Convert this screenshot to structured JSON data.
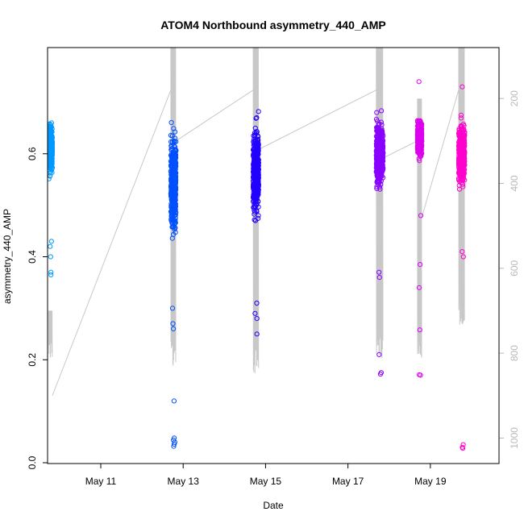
{
  "chart_data": {
    "type": "scatter",
    "title": "ATOM4 Northbound asymmetry_440_AMP",
    "xlabel": "Date",
    "ylabel": "asymmetry_440_AMP",
    "xlim": [
      "2023-05-09T17:00",
      "2023-05-20T16:00"
    ],
    "ylim": [
      0.0,
      0.8
    ],
    "y2lim": [
      1060,
      80
    ],
    "x_ticks": [
      {
        "date": "2023-05-11",
        "label": "May 11"
      },
      {
        "date": "2023-05-13",
        "label": "May 13"
      },
      {
        "date": "2023-05-15",
        "label": "May 15"
      },
      {
        "date": "2023-05-17",
        "label": "May 17"
      },
      {
        "date": "2023-05-19",
        "label": "May 19"
      }
    ],
    "y_ticks": [
      {
        "value": 0.0,
        "label": "0.0"
      },
      {
        "value": 0.2,
        "label": "0.2"
      },
      {
        "value": 0.4,
        "label": "0.4"
      },
      {
        "value": 0.6,
        "label": "0.6"
      }
    ],
    "y2_ticks": [
      {
        "value": 200,
        "label": "200"
      },
      {
        "value": 400,
        "label": "400"
      },
      {
        "value": 600,
        "label": "600"
      },
      {
        "value": 800,
        "label": "800"
      },
      {
        "value": 1000,
        "label": "1000"
      }
    ],
    "grid": false,
    "legend": "none",
    "colors": {
      "line": "#c8c8c8",
      "right_axis": "#b8b8b8"
    },
    "series": [
      {
        "date": "2023-05-09",
        "start_h": 17.6,
        "end_h": 19.8,
        "color": "#0099ff",
        "y_core": [
          0.48,
          0.68
        ],
        "y_center": 0.61,
        "outliers": [
          0.43,
          0.42,
          0.4,
          0.37,
          0.365
        ],
        "depth_min": 700,
        "depth_max": 820
      },
      {
        "date": "2023-05-12",
        "start_h": 16.8,
        "end_h": 19.8,
        "color": "#0050ff",
        "y_core": [
          0.34,
          0.75
        ],
        "y_center": 0.54,
        "outliers": [
          0.3,
          0.27,
          0.26,
          0.12,
          0.048,
          0.044,
          0.04,
          0.036,
          0.032
        ],
        "depth_min": 80,
        "depth_max": 830
      },
      {
        "date": "2023-05-14",
        "start_h": 16.8,
        "end_h": 20.0,
        "color": "#2200ff",
        "y_core": [
          0.36,
          0.74
        ],
        "y_center": 0.57,
        "outliers": [
          0.31,
          0.29,
          0.28,
          0.25
        ],
        "depth_min": 80,
        "depth_max": 850
      },
      {
        "date": "2023-05-17",
        "start_h": 16.5,
        "end_h": 20.5,
        "color": "#8800ff",
        "y_core": [
          0.5,
          0.77
        ],
        "y_center": 0.6,
        "outliers": [
          0.37,
          0.36,
          0.21,
          0.175,
          0.172
        ],
        "depth_min": 80,
        "depth_max": 820
      },
      {
        "date": "2023-05-18",
        "start_h": 16.5,
        "end_h": 19.0,
        "color": "#dd00ee",
        "y_core": [
          0.52,
          0.68
        ],
        "y_center": 0.63,
        "outliers": [
          0.74,
          0.48,
          0.385,
          0.34,
          0.258,
          0.171,
          0.17
        ],
        "depth_min": 200,
        "depth_max": 820
      },
      {
        "date": "2023-05-19",
        "start_h": 16.5,
        "end_h": 20.0,
        "color": "#ff00cc",
        "y_core": [
          0.44,
          0.7
        ],
        "y_center": 0.6,
        "outliers": [
          0.73,
          0.41,
          0.4,
          0.035,
          0.03,
          0.028
        ],
        "depth_min": 80,
        "depth_max": 740
      }
    ]
  }
}
